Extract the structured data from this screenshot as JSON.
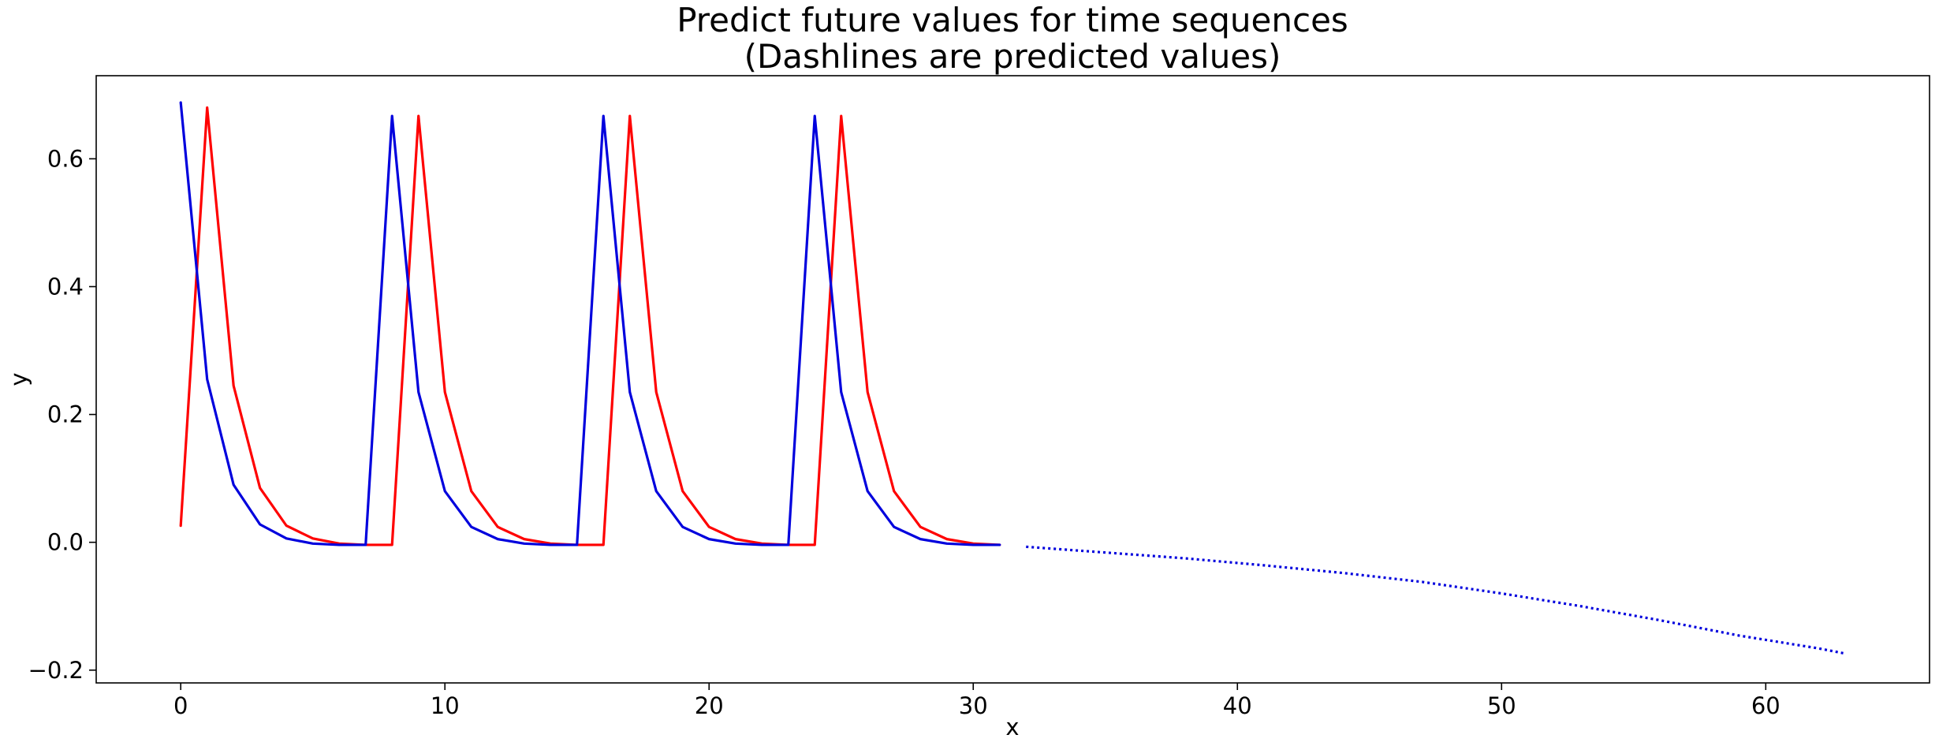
{
  "chart_data": {
    "type": "line",
    "title": "Predict future values for time sequences\n(Dashlines are predicted values)",
    "title_lines": [
      "Predict future values for time sequences",
      "(Dashlines are predicted values)"
    ],
    "xlabel": "x",
    "ylabel": "y",
    "xlim": [
      -3.2,
      66.2
    ],
    "ylim": [
      -0.22,
      0.73
    ],
    "xticks": [
      0,
      10,
      20,
      30,
      40,
      50,
      60
    ],
    "yticks": [
      -0.2,
      0.0,
      0.2,
      0.4,
      0.6
    ],
    "ytick_labels": [
      "−0.2",
      "0.0",
      "0.2",
      "0.4",
      "0.6"
    ],
    "grid": false,
    "legend": "none",
    "series": [
      {
        "color": "#ff0000",
        "style": "solid",
        "x": [
          0,
          1,
          2,
          3,
          4,
          5,
          6,
          7,
          8,
          9,
          10,
          11,
          12,
          13,
          14,
          15,
          16,
          17,
          18,
          19,
          20,
          21,
          22,
          23,
          24,
          25,
          26,
          27,
          28,
          29,
          30,
          31
        ],
        "values": [
          0.026,
          0.68,
          0.245,
          0.085,
          0.026,
          0.006,
          -0.002,
          -0.004,
          -0.004,
          0.667,
          0.235,
          0.08,
          0.024,
          0.005,
          -0.002,
          -0.004,
          -0.004,
          0.667,
          0.235,
          0.08,
          0.024,
          0.005,
          -0.002,
          -0.004,
          -0.004,
          0.667,
          0.235,
          0.08,
          0.024,
          0.005,
          -0.002,
          -0.004
        ]
      },
      {
        "color": "#0000dd",
        "style": "solid",
        "x": [
          0,
          1,
          2,
          3,
          4,
          5,
          6,
          7,
          8,
          9,
          10,
          11,
          12,
          13,
          14,
          15,
          16,
          17,
          18,
          19,
          20,
          21,
          22,
          23,
          24,
          25,
          26,
          27,
          28,
          29,
          30,
          31
        ],
        "values": [
          0.688,
          0.255,
          0.09,
          0.028,
          0.006,
          -0.002,
          -0.004,
          -0.004,
          0.667,
          0.235,
          0.08,
          0.024,
          0.005,
          -0.002,
          -0.004,
          -0.004,
          0.667,
          0.235,
          0.08,
          0.024,
          0.005,
          -0.002,
          -0.004,
          -0.004,
          0.667,
          0.235,
          0.08,
          0.024,
          0.005,
          -0.002,
          -0.004,
          -0.004
        ]
      },
      {
        "color": "#0000dd",
        "style": "dotted",
        "x": [
          32,
          35,
          38,
          41,
          44,
          47,
          50,
          53,
          56,
          59,
          62,
          63
        ],
        "values": [
          -0.007,
          -0.016,
          -0.025,
          -0.036,
          -0.048,
          -0.062,
          -0.08,
          -0.1,
          -0.122,
          -0.146,
          -0.166,
          -0.174
        ]
      }
    ]
  }
}
